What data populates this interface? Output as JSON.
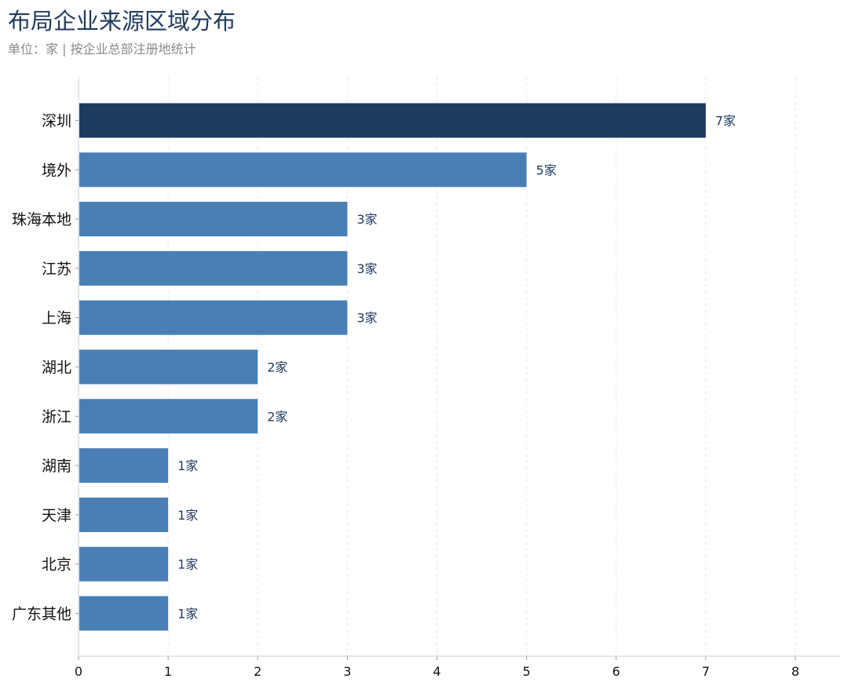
{
  "chart_data": {
    "type": "bar",
    "orientation": "horizontal",
    "title": "布局企业来源区域分布",
    "subtitle": "单位：家 | 按企业总部注册地统计",
    "categories": [
      "深圳",
      "境外",
      "珠海本地",
      "江苏",
      "上海",
      "湖北",
      "浙江",
      "湖南",
      "天津",
      "北京",
      "广东其他"
    ],
    "values": [
      7,
      5,
      3,
      3,
      3,
      2,
      2,
      1,
      1,
      1,
      1
    ],
    "value_labels": [
      "7家",
      "5家",
      "3家",
      "3家",
      "3家",
      "2家",
      "2家",
      "1家",
      "1家",
      "1家",
      "1家"
    ],
    "highlight_index": 0,
    "highlight_color": "#1f3a5f",
    "bar_color": "#4a7fb5",
    "xlim": [
      0,
      8.5
    ],
    "xticks": [
      0,
      1,
      2,
      3,
      4,
      5,
      6,
      7,
      8
    ],
    "xlabel": "",
    "ylabel": "",
    "grid": "vertical-dashed",
    "legend": "none"
  }
}
